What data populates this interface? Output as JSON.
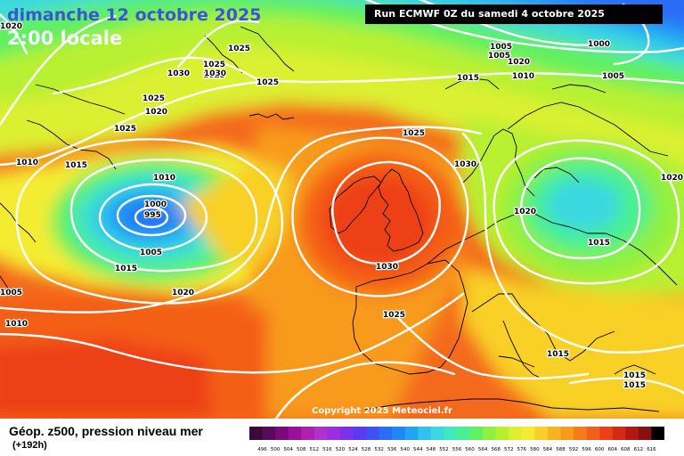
{
  "header": {
    "date_title": "dimanche 12 octobre 2025",
    "time_title": "2:00 locale",
    "run_info": "Run ECMWF 0Z du samedi 4 octobre 2025"
  },
  "copyright": "Copyright 2025 Meteociel.fr",
  "footer": {
    "product": "Géop. z500, pression niveau mer",
    "lead": "(+192h)"
  },
  "isobar_labels": [
    "1020",
    "1025",
    "1025",
    "1030",
    "1025",
    "1030",
    "1025",
    "1025",
    "1020",
    "1025",
    "1010",
    "1015",
    "1010",
    "1000",
    "995",
    "1005",
    "1015",
    "1020",
    "1005",
    "1010",
    "1025",
    "1030",
    "1030",
    "1025",
    "1020",
    "1005",
    "1005",
    "1000",
    "1010",
    "1015",
    "1005",
    "1020",
    "1020",
    "1015",
    "1015",
    "1015",
    "1015"
  ],
  "colorbar": {
    "values": [
      "496",
      "500",
      "504",
      "508",
      "512",
      "516",
      "520",
      "524",
      "528",
      "532",
      "536",
      "540",
      "544",
      "548",
      "552",
      "556",
      "560",
      "564",
      "568",
      "572",
      "576",
      "580",
      "584",
      "588",
      "592",
      "596",
      "600",
      "604",
      "608",
      "612",
      "616"
    ],
    "colors": [
      "#3a0a3a",
      "#5a0a5a",
      "#7a0a7a",
      "#9a109a",
      "#b020b0",
      "#b030d0",
      "#9b2fe0",
      "#7a32ec",
      "#5a3af0",
      "#3f50f4",
      "#2a6cf6",
      "#1e88f6",
      "#22a4f4",
      "#2ec2f0",
      "#3ad8e0",
      "#40e8c0",
      "#48f090",
      "#60f060",
      "#90f040",
      "#b8f030",
      "#dcf030",
      "#f4ec30",
      "#f8d028",
      "#f8b420",
      "#f89a1c",
      "#f67c1a",
      "#f45e18",
      "#ee4018",
      "#d42a14",
      "#b01a12",
      "#881010",
      "#000000"
    ]
  },
  "colors": {
    "isobar": "#ffffff",
    "coast": "#000000"
  }
}
